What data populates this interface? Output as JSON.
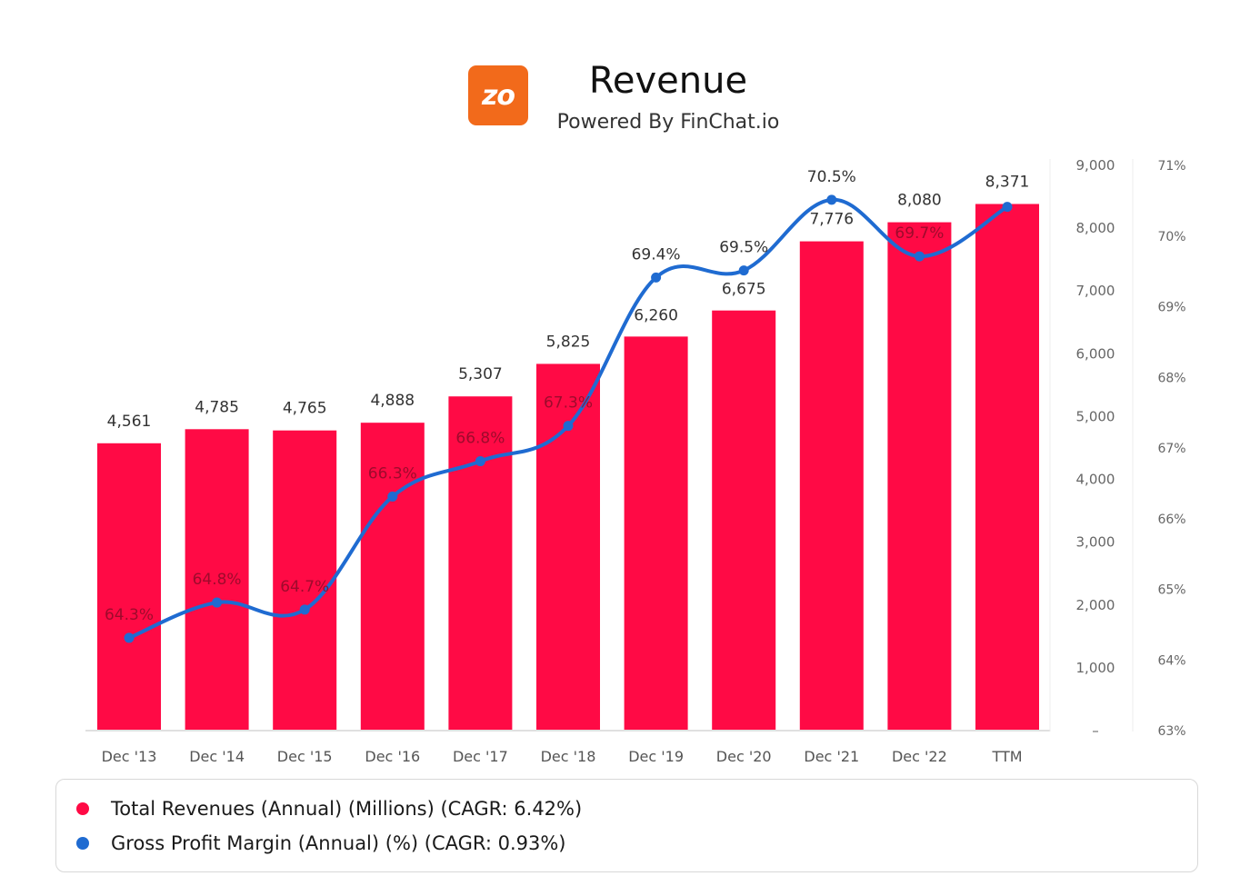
{
  "header": {
    "logo_text": "zo",
    "logo_color": "#f26a1b",
    "title": "Revenue",
    "subtitle": "Powered By FinChat.io"
  },
  "chart_data": {
    "type": "bar",
    "categories": [
      "Dec '13",
      "Dec '14",
      "Dec '15",
      "Dec '16",
      "Dec '17",
      "Dec '18",
      "Dec '19",
      "Dec '20",
      "Dec '21",
      "Dec '22",
      "TTM"
    ],
    "series": [
      {
        "name": "Total Revenues (Annual) (Millions) (CAGR: 6.42%)",
        "type": "bar",
        "axis": "left",
        "color": "#ff0a45",
        "values": [
          4561,
          4785,
          4765,
          4888,
          5307,
          5825,
          6260,
          6675,
          7776,
          8080,
          8371
        ],
        "labels": [
          "4,561",
          "4,785",
          "4,765",
          "4,888",
          "5,307",
          "5,825",
          "6,260",
          "6,675",
          "7,776",
          "8,080",
          "8,371"
        ]
      },
      {
        "name": "Gross Profit Margin (Annual) (%) (CAGR: 0.93%)",
        "type": "line",
        "axis": "right",
        "color": "#1f6bd1",
        "values": [
          64.3,
          64.8,
          64.7,
          66.3,
          66.8,
          67.3,
          69.4,
          69.5,
          70.5,
          69.7,
          70.4
        ],
        "labels": [
          "64.3%",
          "64.8%",
          "64.7%",
          "66.3%",
          "66.8%",
          "67.3%",
          "69.4%",
          "69.5%",
          "70.5%",
          "69.7%",
          ""
        ]
      }
    ],
    "y_left": {
      "ylim": [
        0,
        9000
      ],
      "ticks": [
        0,
        1000,
        2000,
        3000,
        4000,
        5000,
        6000,
        7000,
        8000,
        9000
      ],
      "tick_labels": [
        "–",
        "1,000",
        "2,000",
        "3,000",
        "4,000",
        "5,000",
        "6,000",
        "7,000",
        "8,000",
        "9,000"
      ]
    },
    "y_right": {
      "ylim": [
        63,
        71
      ],
      "ticks": [
        63,
        64,
        65,
        66,
        67,
        68,
        69,
        70,
        71
      ],
      "tick_labels": [
        "63%",
        "64%",
        "65%",
        "66%",
        "67%",
        "68%",
        "69%",
        "70%",
        "71%"
      ]
    },
    "legend_position": "bottom",
    "grid": false
  },
  "legend": {
    "items": [
      {
        "label": "Total Revenues (Annual) (Millions) (CAGR: 6.42%)",
        "color": "#ff0a45"
      },
      {
        "label": "Gross Profit Margin (Annual) (%) (CAGR: 0.93%)",
        "color": "#1f6bd1"
      }
    ]
  }
}
